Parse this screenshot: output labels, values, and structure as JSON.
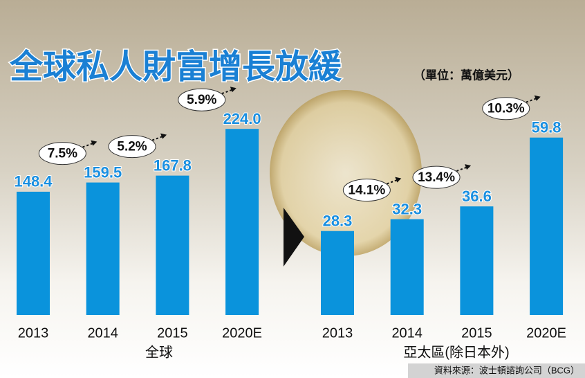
{
  "title": "全球私人財富增長放緩",
  "unit": "（單位：萬億美元）",
  "source": "資料來源：波士頓諮詢公司（BCG）",
  "chart_data": [
    {
      "type": "bar",
      "xlabel": "全球",
      "categories": [
        "2013",
        "2014",
        "2015",
        "2020E"
      ],
      "values": [
        148.4,
        159.5,
        167.8,
        224.0
      ],
      "value_labels": [
        "148.4",
        "159.5",
        "167.8",
        "224.0"
      ],
      "annotations": [
        "7.5%",
        "5.2%",
        "5.9%"
      ],
      "color": "#0a93dc",
      "ylim": [
        0,
        250
      ]
    },
    {
      "type": "bar",
      "xlabel": "亞太區(除日本外)",
      "categories": [
        "2013",
        "2014",
        "2015",
        "2020E"
      ],
      "values": [
        28.3,
        32.3,
        36.6,
        59.8
      ],
      "value_labels": [
        "28.3",
        "32.3",
        "36.6",
        "59.8"
      ],
      "annotations": [
        "14.1%",
        "13.4%",
        "10.3%"
      ],
      "color": "#0a93dc",
      "ylim": [
        0,
        70
      ]
    }
  ]
}
